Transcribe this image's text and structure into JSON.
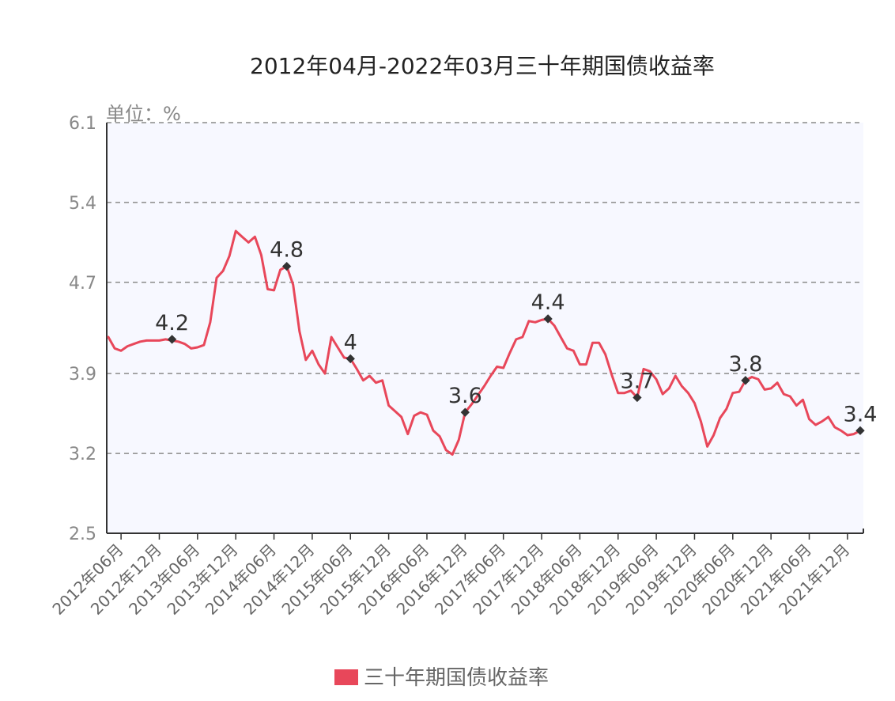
{
  "chart_data": {
    "type": "line",
    "title": "2012年04月-2022年03月三十年期国债收益率",
    "unit_label": "单位：%",
    "ylim": [
      2.5,
      6.1
    ],
    "y_ticks": [
      "6.1",
      "5.4",
      "4.7",
      "3.9",
      "3.2",
      "2.5"
    ],
    "y_tick_values": [
      6.1,
      5.4,
      4.7,
      3.9,
      3.2,
      2.5
    ],
    "grid": true,
    "legend_position": "bottom",
    "x_ticks": [
      "2012年06月",
      "2012年12月",
      "2013年06月",
      "2013年12月",
      "2014年06月",
      "2014年12月",
      "2015年06月",
      "2015年12月",
      "2016年06月",
      "2016年12月",
      "2017年06月",
      "2017年12月",
      "2018年06月",
      "2018年12月",
      "2019年06月",
      "2019年12月",
      "2020年06月",
      "2020年12月",
      "2021年06月",
      "2021年12月"
    ],
    "x_tick_index": [
      2,
      8,
      14,
      20,
      26,
      32,
      38,
      44,
      50,
      56,
      62,
      68,
      74,
      80,
      86,
      92,
      98,
      104,
      110,
      116
    ],
    "series": [
      {
        "name": "三十年期国债收益率",
        "color": "#e8475a",
        "values": [
          4.22,
          4.12,
          4.1,
          4.14,
          4.16,
          4.18,
          4.19,
          4.19,
          4.19,
          4.2,
          4.19,
          4.18,
          4.16,
          4.12,
          4.13,
          4.15,
          4.35,
          4.74,
          4.8,
          4.93,
          5.15,
          5.1,
          5.05,
          5.1,
          4.94,
          4.64,
          4.63,
          4.81,
          4.84,
          4.68,
          4.27,
          4.02,
          4.1,
          3.98,
          3.9,
          4.22,
          4.13,
          4.04,
          4.03,
          3.94,
          3.84,
          3.88,
          3.82,
          3.84,
          3.62,
          3.57,
          3.52,
          3.37,
          3.53,
          3.56,
          3.54,
          3.4,
          3.35,
          3.23,
          3.19,
          3.32,
          3.56,
          3.63,
          3.71,
          3.79,
          3.88,
          3.96,
          3.95,
          4.08,
          4.2,
          4.22,
          4.36,
          4.35,
          4.37,
          4.38,
          4.32,
          4.22,
          4.12,
          4.1,
          3.98,
          3.98,
          4.17,
          4.17,
          4.07,
          3.89,
          3.73,
          3.73,
          3.75,
          3.69,
          3.94,
          3.92,
          3.85,
          3.72,
          3.77,
          3.88,
          3.79,
          3.73,
          3.64,
          3.48,
          3.26,
          3.36,
          3.51,
          3.59,
          3.73,
          3.74,
          3.84,
          3.87,
          3.85,
          3.76,
          3.77,
          3.82,
          3.72,
          3.7,
          3.62,
          3.67,
          3.5,
          3.45,
          3.48,
          3.52,
          3.43,
          3.4,
          3.36,
          3.37,
          3.4
        ]
      }
    ],
    "annotations": [
      {
        "index": 10,
        "value": 4.2,
        "label": "4.2"
      },
      {
        "index": 28,
        "value": 4.84,
        "label": "4.8"
      },
      {
        "index": 38,
        "value": 4.03,
        "label": "4"
      },
      {
        "index": 56,
        "value": 3.56,
        "label": "3.6"
      },
      {
        "index": 69,
        "value": 4.38,
        "label": "4.4"
      },
      {
        "index": 83,
        "value": 3.69,
        "label": "3.7"
      },
      {
        "index": 100,
        "value": 3.84,
        "label": "3.8"
      },
      {
        "index": 118,
        "value": 3.4,
        "label": "3.4"
      }
    ],
    "plot_background": "#f7f8ff",
    "grid_color": "#8a8a8a"
  }
}
